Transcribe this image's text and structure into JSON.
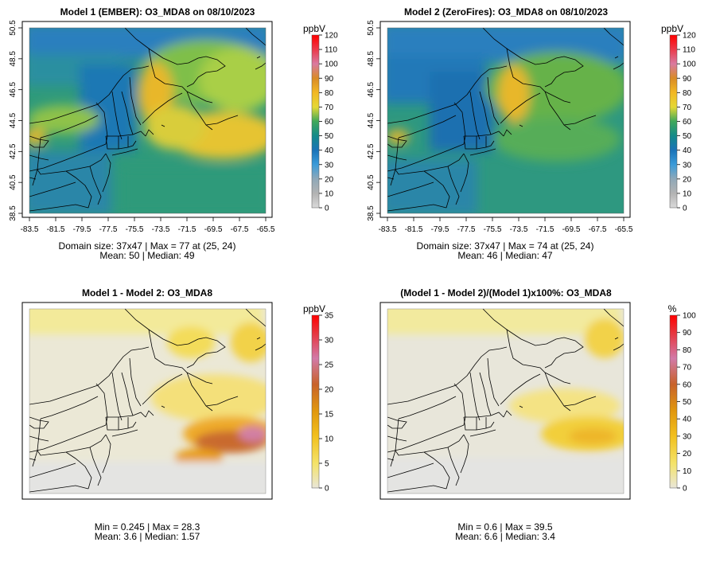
{
  "panels": [
    {
      "title": "Model 1 (EMBER): O3_MDA8 on 08/10/2023",
      "unit": "ppbV",
      "colorbar_ticks": [
        "0",
        "10",
        "20",
        "30",
        "40",
        "50",
        "60",
        "70",
        "80",
        "90",
        "100",
        "110",
        "120"
      ],
      "colorbar_range": [
        0,
        120
      ],
      "x_ticks": [
        "-83.5",
        "-81.5",
        "-79.5",
        "-77.5",
        "-75.5",
        "-73.5",
        "-71.5",
        "-69.5",
        "-67.5",
        "-65.5"
      ],
      "y_ticks": [
        "38.5",
        "40.5",
        "42.5",
        "44.5",
        "46.5",
        "48.5",
        "50.5"
      ],
      "stats_line1": "Domain size: 37x47 | Max = 77 at (25, 24)",
      "stats_line2": "Mean: 50 |  Median: 49"
    },
    {
      "title": "Model 2 (ZeroFires): O3_MDA8 on 08/10/2023",
      "unit": "ppbV",
      "colorbar_ticks": [
        "0",
        "10",
        "20",
        "30",
        "40",
        "50",
        "60",
        "70",
        "80",
        "90",
        "100",
        "110",
        "120"
      ],
      "colorbar_range": [
        0,
        120
      ],
      "x_ticks": [
        "-83.5",
        "-81.5",
        "-79.5",
        "-77.5",
        "-75.5",
        "-73.5",
        "-71.5",
        "-69.5",
        "-67.5",
        "-65.5"
      ],
      "y_ticks": [
        "38.5",
        "40.5",
        "42.5",
        "44.5",
        "46.5",
        "48.5",
        "50.5"
      ],
      "stats_line1": "Domain size: 37x47 | Max = 74 at (25, 24)",
      "stats_line2": "Mean: 46 |  Median: 47"
    },
    {
      "title": "Model 1 - Model 2: O3_MDA8",
      "unit": "ppbV",
      "colorbar_ticks": [
        "0",
        "5",
        "10",
        "15",
        "20",
        "25",
        "30",
        "35"
      ],
      "colorbar_range": [
        0,
        35
      ],
      "stats_line1": "Min = 0.245 | Max = 28.3",
      "stats_line2": "Mean: 3.6 |  Median: 1.57"
    },
    {
      "title": "(Model 1 - Model 2)/(Model 1)x100%: O3_MDA8",
      "unit": "%",
      "colorbar_ticks": [
        "0",
        "10",
        "20",
        "30",
        "40",
        "50",
        "60",
        "70",
        "80",
        "90",
        "100"
      ],
      "colorbar_range": [
        0,
        100
      ],
      "stats_line1": "Min = 0.6 | Max = 39.5",
      "stats_line2": "Mean: 6.6 |  Median: 3.4"
    }
  ],
  "chart_data": [
    {
      "type": "heatmap",
      "title": "Model 1 (EMBER): O3_MDA8 on 08/10/2023",
      "unit": "ppbV",
      "grid_size": "37x47",
      "xlim": [
        -83.5,
        -65.5
      ],
      "ylim": [
        38.5,
        50.5
      ],
      "max": 77,
      "max_location": "(25, 24)",
      "mean": 50,
      "median": 49,
      "colorbar": [
        0,
        120
      ]
    },
    {
      "type": "heatmap",
      "title": "Model 2 (ZeroFires): O3_MDA8 on 08/10/2023",
      "unit": "ppbV",
      "grid_size": "37x47",
      "xlim": [
        -83.5,
        -65.5
      ],
      "ylim": [
        38.5,
        50.5
      ],
      "max": 74,
      "max_location": "(25, 24)",
      "mean": 46,
      "median": 47,
      "colorbar": [
        0,
        120
      ]
    },
    {
      "type": "heatmap",
      "title": "Model 1 - Model 2: O3_MDA8",
      "unit": "ppbV",
      "min": 0.245,
      "max": 28.3,
      "mean": 3.6,
      "median": 1.57,
      "colorbar": [
        0,
        35
      ]
    },
    {
      "type": "heatmap",
      "title": "(Model 1 - Model 2)/(Model 1)x100%: O3_MDA8",
      "unit": "%",
      "min": 0.6,
      "max": 39.5,
      "mean": 6.6,
      "median": 3.4,
      "colorbar": [
        0,
        100
      ]
    }
  ]
}
